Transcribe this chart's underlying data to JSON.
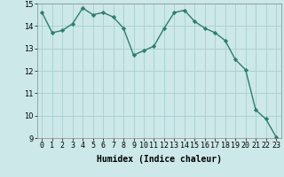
{
  "x": [
    0,
    1,
    2,
    3,
    4,
    5,
    6,
    7,
    8,
    9,
    10,
    11,
    12,
    13,
    14,
    15,
    16,
    17,
    18,
    19,
    20,
    21,
    22,
    23
  ],
  "y": [
    14.6,
    13.7,
    13.8,
    14.1,
    14.8,
    14.5,
    14.6,
    14.4,
    13.9,
    12.7,
    12.9,
    13.1,
    13.9,
    14.6,
    14.7,
    14.2,
    13.9,
    13.7,
    13.35,
    12.5,
    12.05,
    10.25,
    9.85,
    9.05
  ],
  "line_color": "#2e7d6e",
  "marker": "D",
  "markersize": 2.2,
  "bg_color": "#cce8e8",
  "grid_color": "#aacece",
  "xlabel": "Humidex (Indice chaleur)",
  "ylim": [
    9,
    15
  ],
  "xlim": [
    -0.5,
    23.5
  ],
  "yticks": [
    9,
    10,
    11,
    12,
    13,
    14,
    15
  ],
  "xtick_labels": [
    "0",
    "1",
    "2",
    "3",
    "4",
    "5",
    "6",
    "7",
    "8",
    "9",
    "10",
    "11",
    "12",
    "13",
    "14",
    "15",
    "16",
    "17",
    "18",
    "19",
    "20",
    "21",
    "22",
    "23"
  ],
  "xlabel_fontsize": 7,
  "tick_fontsize": 6,
  "linewidth": 1.0
}
